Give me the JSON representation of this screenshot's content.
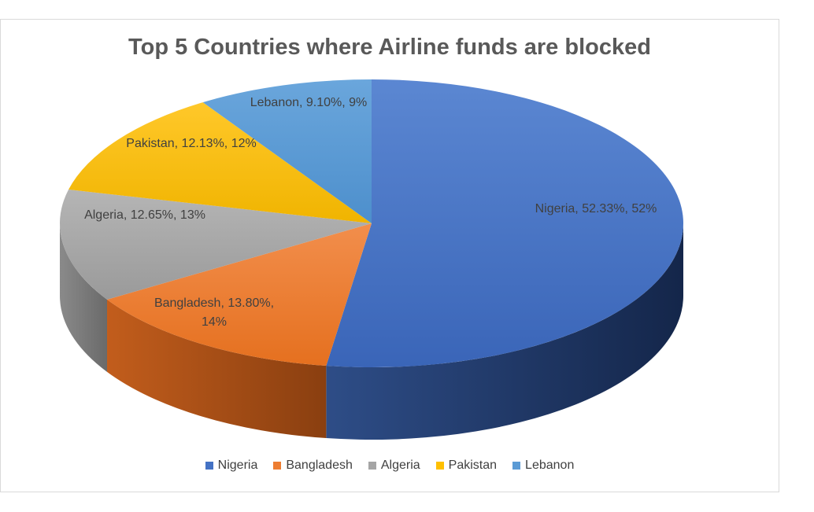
{
  "chart_data": {
    "type": "pie",
    "title": "Top 5 Countries where Airline funds are blocked",
    "categories": [
      "Nigeria",
      "Bangladesh",
      "Algeria",
      "Pakistan",
      "Lebanon"
    ],
    "values": [
      52.33,
      13.8,
      12.65,
      12.13,
      9.1
    ],
    "data_labels": [
      [
        "Nigeria, 52.33%, 52%"
      ],
      [
        "Bangladesh, 13.80%,",
        "14%"
      ],
      [
        "Algeria, 12.65%, 13%"
      ],
      [
        "Pakistan, 12.13%, 12%"
      ],
      [
        "Lebanon, 9.10%, 9%"
      ]
    ],
    "colors": [
      "#4472c4",
      "#ed7d31",
      "#a5a5a5",
      "#ffc000",
      "#5b9bd5"
    ],
    "legend_position": "bottom",
    "style": "3d"
  }
}
